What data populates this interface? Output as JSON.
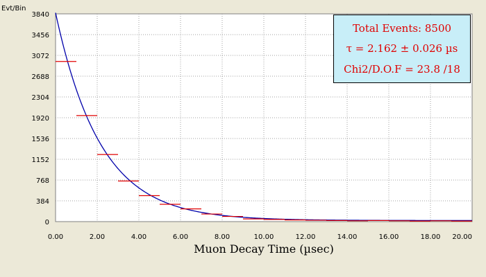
{
  "chart_data": {
    "type": "scatter",
    "title": "",
    "xlabel": "Muon Decay Time (µsec)",
    "ylabel": "Evt/Bin",
    "xlim": [
      0,
      20
    ],
    "ylim": [
      0,
      3840
    ],
    "x_ticks": [
      "0.00",
      "2.00",
      "4.00",
      "6.00",
      "8.00",
      "10.00",
      "12.00",
      "14.00",
      "16.00",
      "18.00",
      "20.00"
    ],
    "y_ticks": [
      "0",
      "384",
      "768",
      "1152",
      "1536",
      "1920",
      "2304",
      "2688",
      "3072",
      "3456",
      "3840"
    ],
    "grid": true,
    "data_points": {
      "bin_width": 1.0,
      "x": [
        0.5,
        1.5,
        2.5,
        3.5,
        4.5,
        5.5,
        6.5,
        7.5,
        8.5,
        9.5,
        10.5,
        11.5,
        12.5,
        13.5,
        14.5,
        15.5,
        16.5,
        17.5,
        18.5,
        19.5
      ],
      "y": [
        2960,
        1960,
        1240,
        750,
        480,
        320,
        235,
        140,
        95,
        50,
        40,
        30,
        25,
        20,
        15,
        20,
        15,
        10,
        15,
        10
      ]
    },
    "fit_curve": {
      "amplitude": 3840,
      "tau": 2.162,
      "offset": 20
    },
    "colors": {
      "data": "#E00000",
      "fit": "#0000AA",
      "grid": "#A0A0A0",
      "background": "#FFFFFF",
      "frame": "#ECE9D8"
    }
  },
  "stats_box": {
    "line1": "Total Events: 8500",
    "line2": "τ = 2.162 ± 0.026 µs",
    "line3": "Chi2/D.O.F = 23.8 /18",
    "background": "#C8EEF8",
    "text_color": "#E00000"
  }
}
